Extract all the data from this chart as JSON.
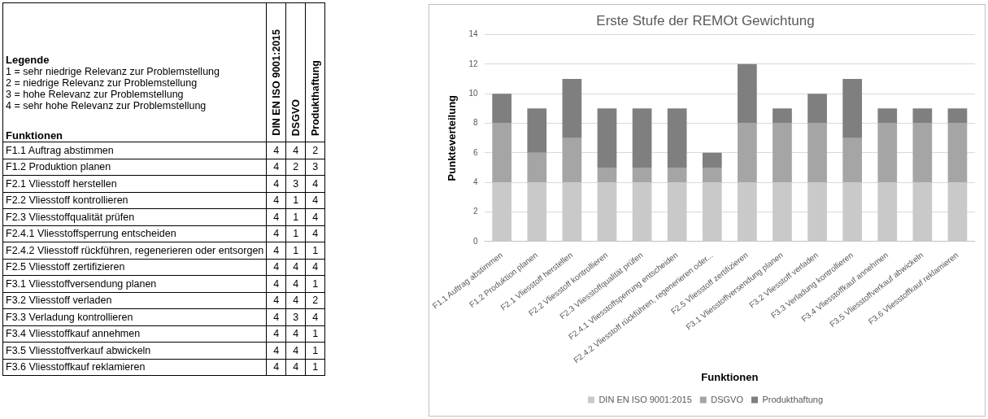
{
  "chart_data": [
    {
      "type": "heatmap",
      "ylabel": "Funktionen",
      "annotations": [
        "Legende",
        "1 = sehr niedrige Relevanz zur Problemstellung",
        "2 = niedrige Relevanz zur Problemstellung",
        "3 = hohe Relevanz zur Problemstellung",
        "4 = sehr hohe Relevanz zur Problemstellung"
      ],
      "categories": [
        "DIN EN ISO 9001:2015",
        "DSGVO",
        "Produkthaftung"
      ],
      "y_categories": [
        "F1.1 Auftrag abstimmen",
        "F1.2 Produktion planen",
        "F2.1 Vliesstoff herstellen",
        "F2.2 Vliesstoff kontrollieren",
        "F2.3 Vliesstoffqualität prüfen",
        "F2.4.1 Vliesstoffsperrung entscheiden",
        "F2.4.2 Vliesstoff rückführen, regenerieren oder entsorgen",
        "F2.5 Vliesstoff zertifizieren",
        "F3.1 Vliesstoffversendung planen",
        "F3.2 Vliesstoff verladen",
        "F3.3 Verladung kontrollieren",
        "F3.4 Vliesstoffkauf annehmen",
        "F3.5 Vliesstoffverkauf abwickeln",
        "F3.6 Vliesstoffkauf reklamieren"
      ],
      "cells": [
        [
          4,
          4,
          2
        ],
        [
          4,
          2,
          3
        ],
        [
          4,
          3,
          4
        ],
        [
          4,
          1,
          4
        ],
        [
          4,
          1,
          4
        ],
        [
          4,
          1,
          4
        ],
        [
          4,
          1,
          1
        ],
        [
          4,
          4,
          4
        ],
        [
          4,
          4,
          1
        ],
        [
          4,
          4,
          2
        ],
        [
          4,
          3,
          4
        ],
        [
          4,
          4,
          1
        ],
        [
          4,
          4,
          1
        ],
        [
          4,
          4,
          1
        ]
      ],
      "data_labels": true
    },
    {
      "type": "bar",
      "title": "Erste Stufe der REMOt Gewichtung",
      "xlabel": "Funktionen",
      "ylabel": "Punkteverteilung",
      "categories": [
        "F1.1 Auftrag abstimmen",
        "F1.2 Produktion planen",
        "F2.1 Vliesstoff herstellen",
        "F2.2 Vliesstoff kontrollieren",
        "F2.3 Vliesstoffqualität prüfen",
        "F2.4.1 Vliesstoffsperrung entscheiden",
        "F2.4.2 Vliesstoff rückführen, regenerieren oder...",
        "F2.5 Vliesstoff zertifizieren",
        "F3.1 Vliesstoffversendung planen",
        "F3.2 Vliesstoff verladen",
        "F3.3 Verladung kontrollieren",
        "F3.4 Vliesstoffkauf annehmen",
        "F3.5 Vliesstoffverkauf abwickeln",
        "F3.6 Vliesstoffkauf reklamieren"
      ],
      "series": [
        {
          "name": "DIN EN ISO 9001:2015",
          "color": "#c9c9c9",
          "values": [
            4,
            4,
            4,
            4,
            4,
            4,
            4,
            4,
            4,
            4,
            4,
            4,
            4,
            4
          ]
        },
        {
          "name": "DSGVO",
          "color": "#a5a5a5",
          "values": [
            4,
            2,
            3,
            1,
            1,
            1,
            1,
            4,
            4,
            4,
            3,
            4,
            4,
            4
          ]
        },
        {
          "name": "Produkthaftung",
          "color": "#7f7f7f",
          "values": [
            2,
            3,
            4,
            4,
            4,
            4,
            1,
            4,
            1,
            2,
            4,
            1,
            1,
            1
          ]
        }
      ],
      "stacked": true,
      "ylim": [
        0,
        14
      ],
      "yticks": [
        0,
        2,
        4,
        6,
        8,
        10,
        12,
        14
      ],
      "grid": "y",
      "legend": "bottom"
    }
  ]
}
